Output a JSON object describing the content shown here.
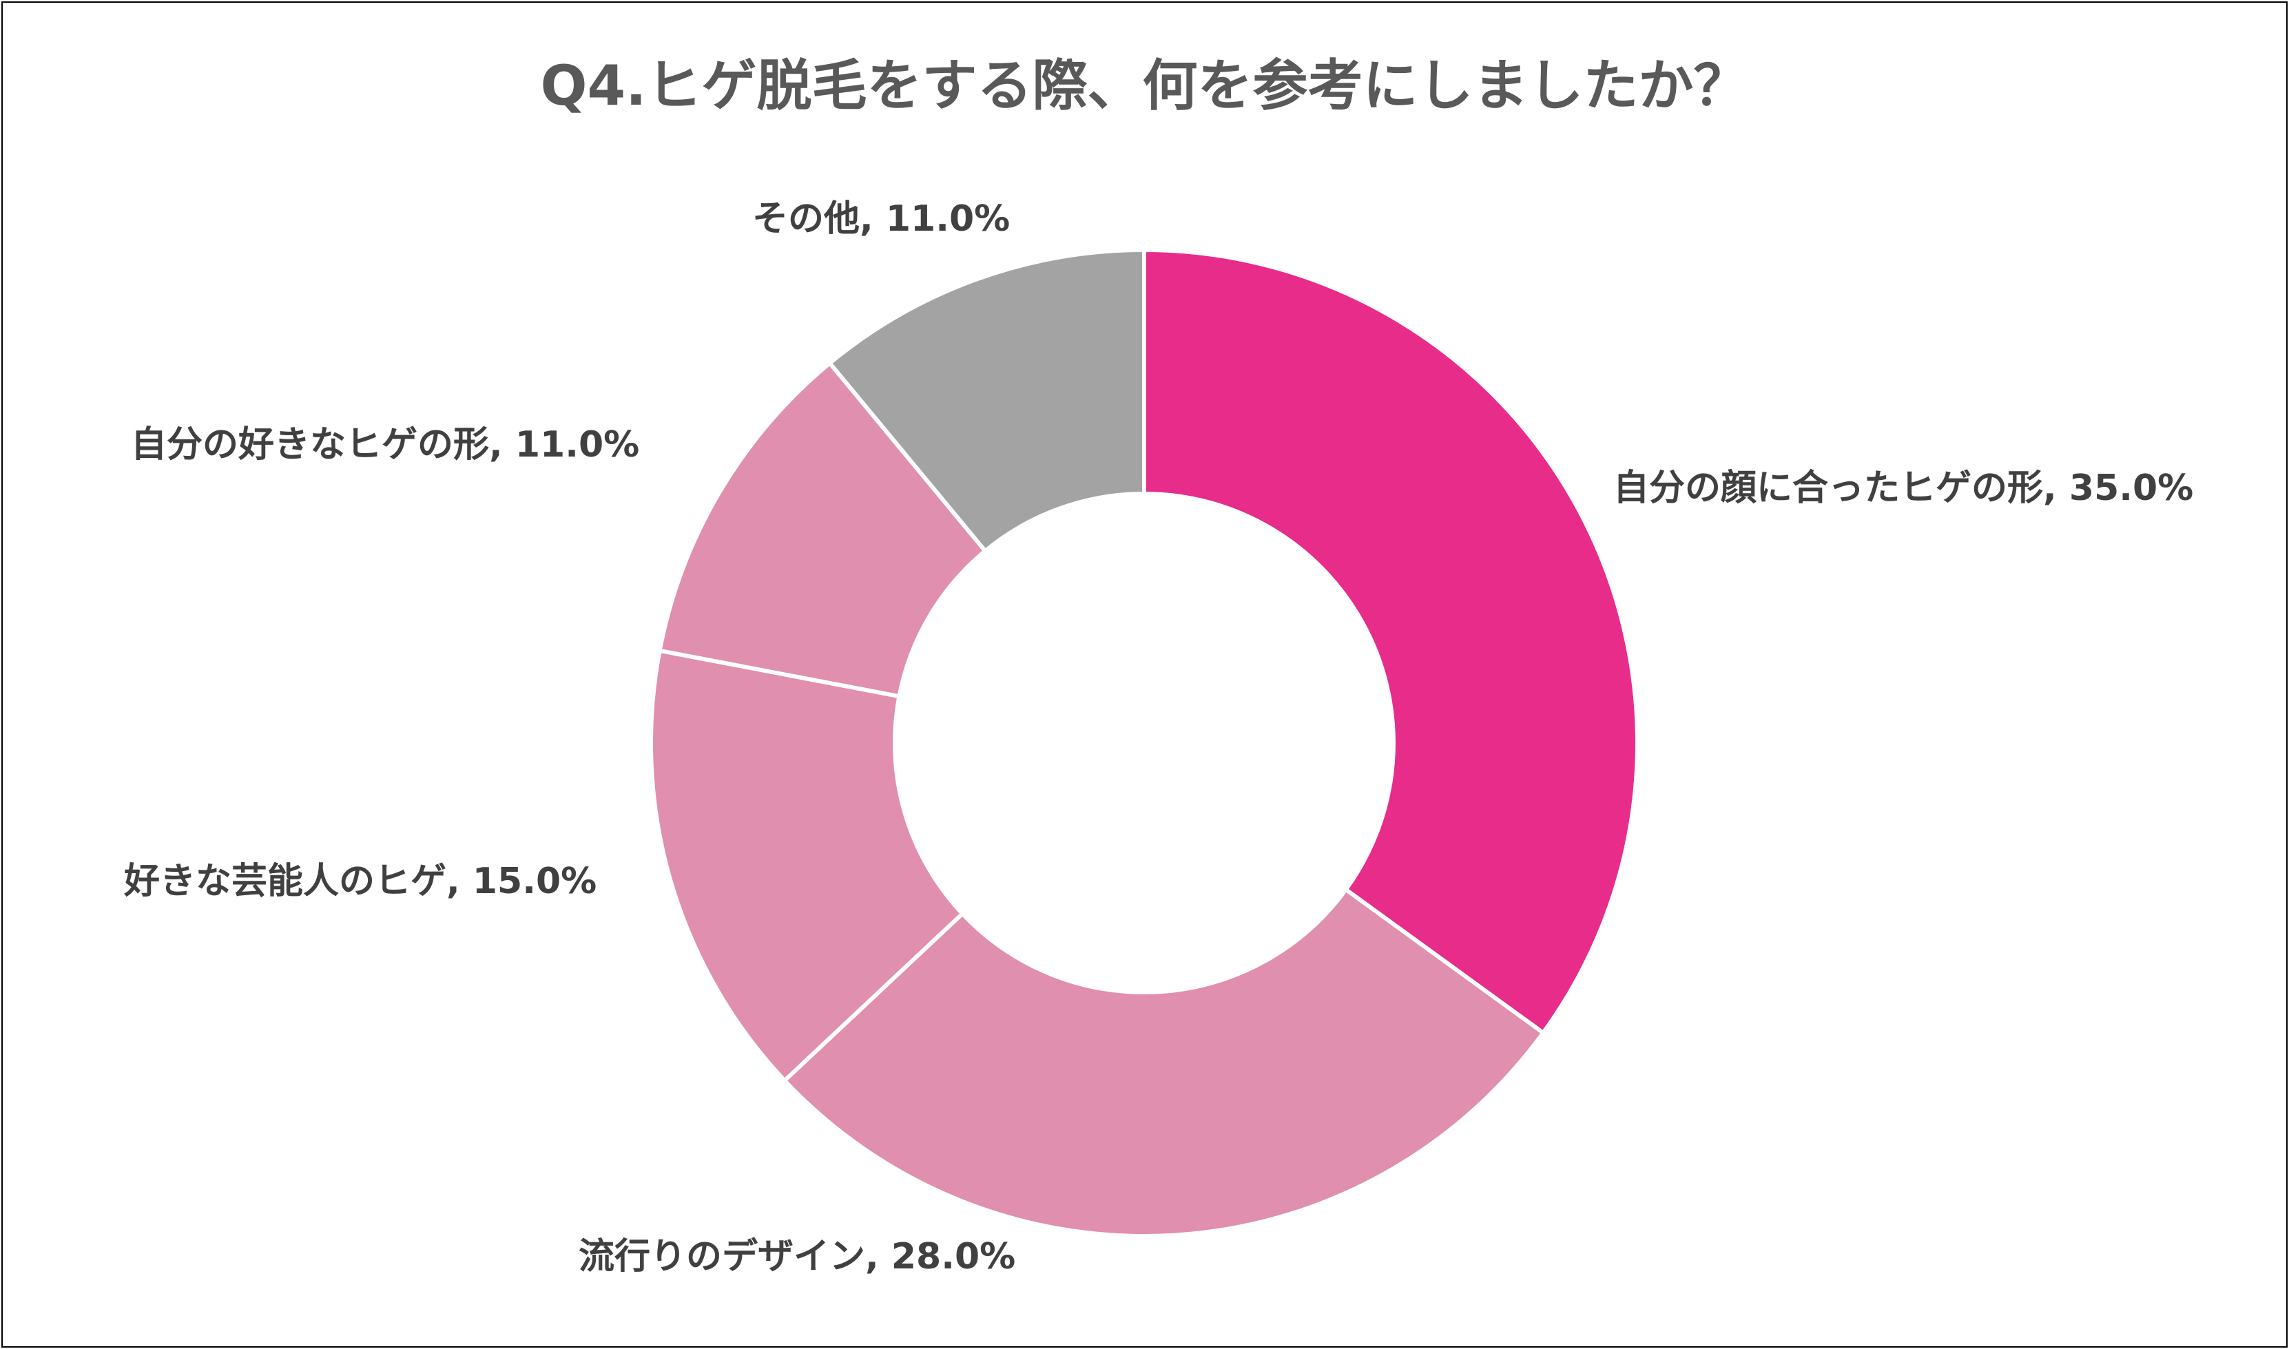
{
  "chart_data": {
    "type": "pie",
    "donut": true,
    "title": "Q4.ヒゲ脱毛をする際、何を参考にしましたか？",
    "legend": "none",
    "slices": [
      {
        "label": "自分の顔に合ったヒゲの形",
        "value": 35.0,
        "display": "自分の顔に合ったヒゲの形, 35.0%",
        "color": "#E82C8A"
      },
      {
        "label": "流行りのデザイン",
        "value": 28.0,
        "display": "流行りのデザイン, 28.0%",
        "color": "#E08FAE"
      },
      {
        "label": "好きな芸能人のヒゲ",
        "value": 15.0,
        "display": "好きな芸能人のヒゲ, 15.0%",
        "color": "#E08FAE"
      },
      {
        "label": "自分の好きなヒゲの形",
        "value": 11.0,
        "display": "自分の好きなヒゲの形, 11.0%",
        "color": "#E08FAE"
      },
      {
        "label": "その他",
        "value": 11.0,
        "display": "その他, 11.0%",
        "color": "#A3A3A3"
      }
    ]
  }
}
